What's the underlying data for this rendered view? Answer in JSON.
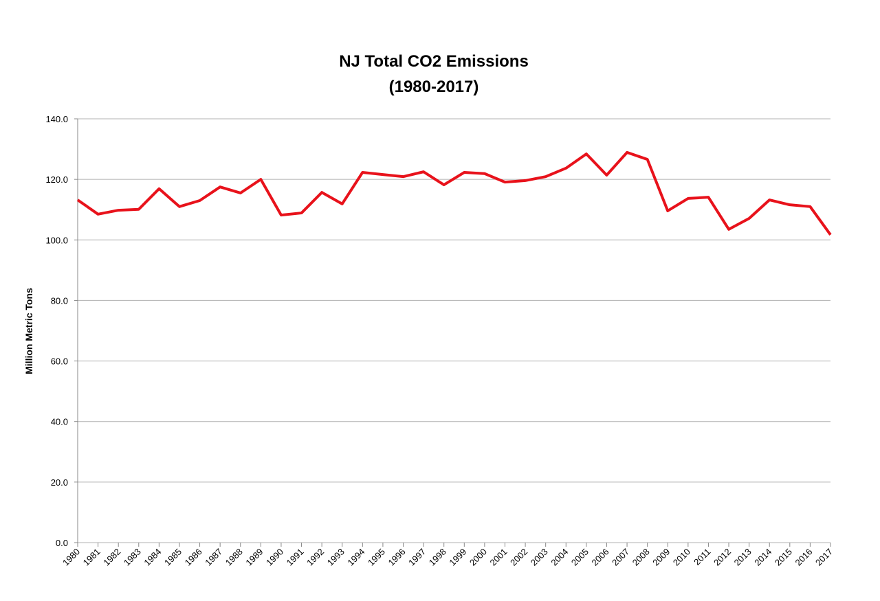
{
  "chart_data": {
    "type": "line",
    "title": [
      "NJ Total CO2 Emissions",
      "(1980-2017)"
    ],
    "y_label": "Million Metric Tons",
    "categories": [
      "1980",
      "1981",
      "1982",
      "1983",
      "1984",
      "1985",
      "1986",
      "1987",
      "1988",
      "1989",
      "1990",
      "1991",
      "1992",
      "1993",
      "1994",
      "1995",
      "1996",
      "1997",
      "1998",
      "1999",
      "2000",
      "2001",
      "2002",
      "2003",
      "2004",
      "2005",
      "2006",
      "2007",
      "2008",
      "2009",
      "2010",
      "2011",
      "2012",
      "2013",
      "2014",
      "2015",
      "2016",
      "2017"
    ],
    "series": [
      {
        "name": "NJ Total CO2 Emissions",
        "color": "#e8121b",
        "values": [
          113.2,
          108.5,
          109.8,
          110.1,
          116.9,
          111.0,
          113.0,
          117.5,
          115.5,
          120.0,
          108.2,
          108.9,
          115.7,
          111.9,
          122.3,
          121.6,
          120.9,
          122.5,
          118.2,
          122.3,
          121.9,
          119.1,
          119.6,
          120.9,
          123.7,
          128.4,
          121.4,
          128.9,
          126.6,
          109.6,
          113.7,
          114.1,
          103.5,
          107.1,
          113.2,
          111.6,
          111.0,
          101.7
        ]
      }
    ],
    "ylim": [
      0,
      140
    ],
    "yticks": [
      {
        "value": 0,
        "label": "0.0"
      },
      {
        "value": 20,
        "label": "20.0"
      },
      {
        "value": 40,
        "label": "40.0"
      },
      {
        "value": 60,
        "label": "60.0"
      },
      {
        "value": 80,
        "label": "80.0"
      },
      {
        "value": 100,
        "label": "100.0"
      },
      {
        "value": 120,
        "label": "120.0"
      },
      {
        "value": 140,
        "label": "140.0"
      }
    ],
    "grid": true
  }
}
